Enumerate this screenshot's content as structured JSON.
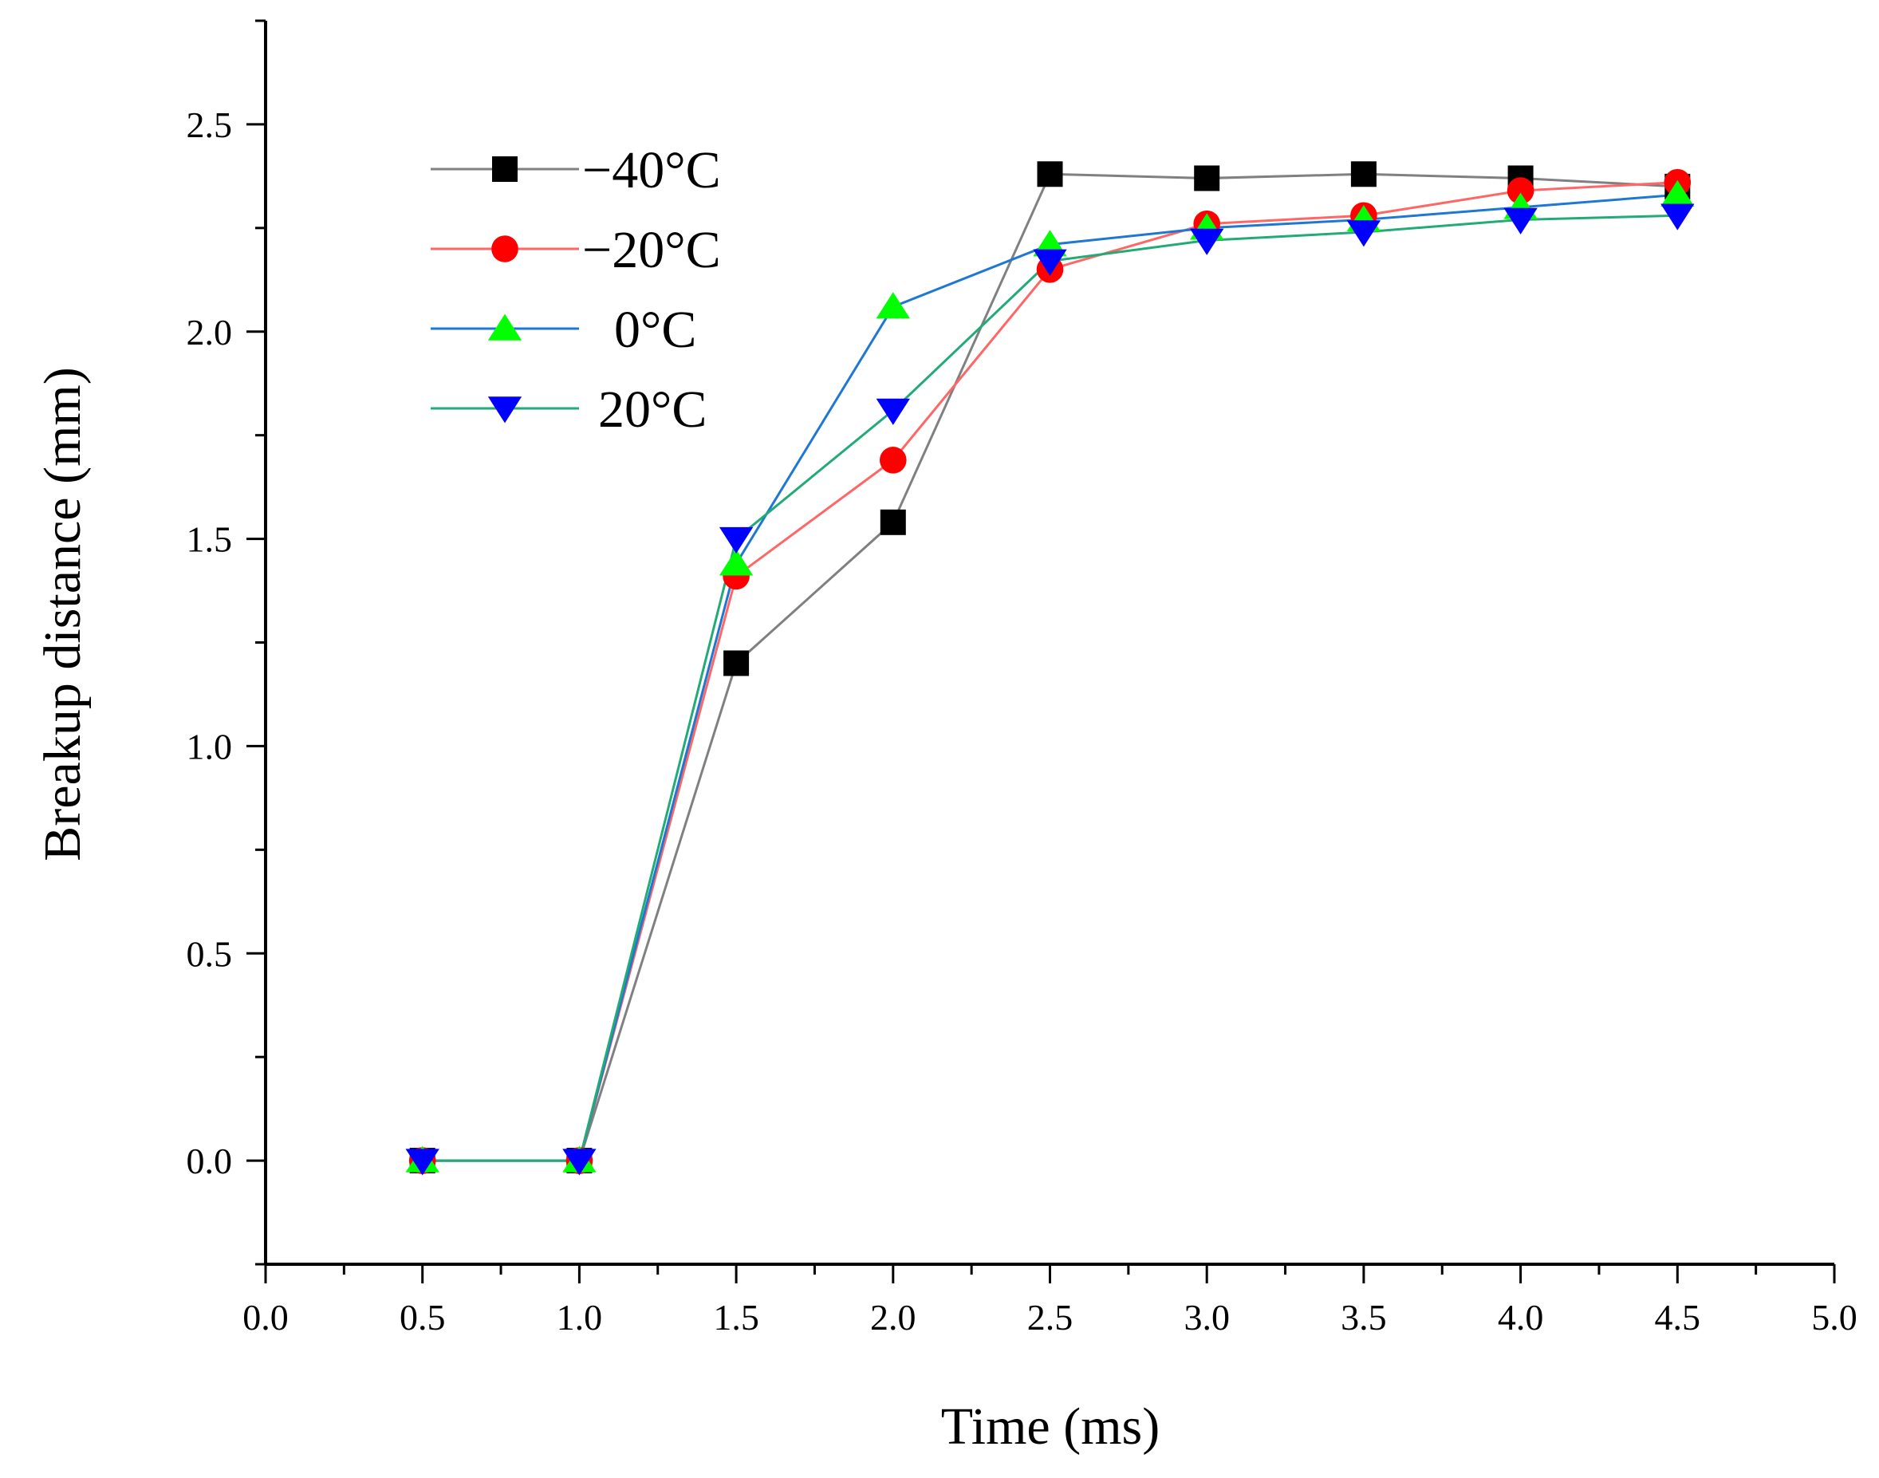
{
  "chart_data": {
    "type": "line",
    "title": "",
    "xlabel": "Time (ms)",
    "ylabel": "Breakup distance (mm)",
    "xlim": [
      0.0,
      5.0
    ],
    "ylim": [
      -0.25,
      2.75
    ],
    "xticks": [
      "0.0",
      "0.5",
      "1.0",
      "1.5",
      "2.0",
      "2.5",
      "3.0",
      "3.5",
      "4.0",
      "4.5",
      "5.0"
    ],
    "yticks": [
      "0.0",
      "0.5",
      "1.0",
      "1.5",
      "2.0",
      "2.5"
    ],
    "grid": false,
    "legend_position": "top-left",
    "x": [
      0.5,
      1.0,
      1.5,
      2.0,
      2.5,
      3.0,
      3.5,
      4.0,
      4.5
    ],
    "series": [
      {
        "name": "−40°C",
        "line_color": "#808080",
        "marker_color": "#000000",
        "marker": "square",
        "values": [
          0.0,
          0.0,
          1.2,
          1.54,
          2.38,
          2.37,
          2.38,
          2.37,
          2.35
        ]
      },
      {
        "name": "−20°C",
        "line_color": "#ff6666",
        "marker_color": "#ff0000",
        "marker": "circle",
        "values": [
          0.0,
          0.0,
          1.41,
          1.69,
          2.15,
          2.26,
          2.28,
          2.34,
          2.36
        ]
      },
      {
        "name": "0°C",
        "line_color": "#1f77d4",
        "marker_color": "#00ff00",
        "marker": "triangle-up",
        "values": [
          0.0,
          0.0,
          1.44,
          2.06,
          2.21,
          2.25,
          2.27,
          2.3,
          2.33
        ]
      },
      {
        "name": "20°C",
        "line_color": "#22aa77",
        "marker_color": "#0000ff",
        "marker": "triangle-down",
        "values": [
          0.0,
          0.0,
          1.5,
          1.81,
          2.17,
          2.22,
          2.24,
          2.27,
          2.28
        ]
      }
    ]
  }
}
